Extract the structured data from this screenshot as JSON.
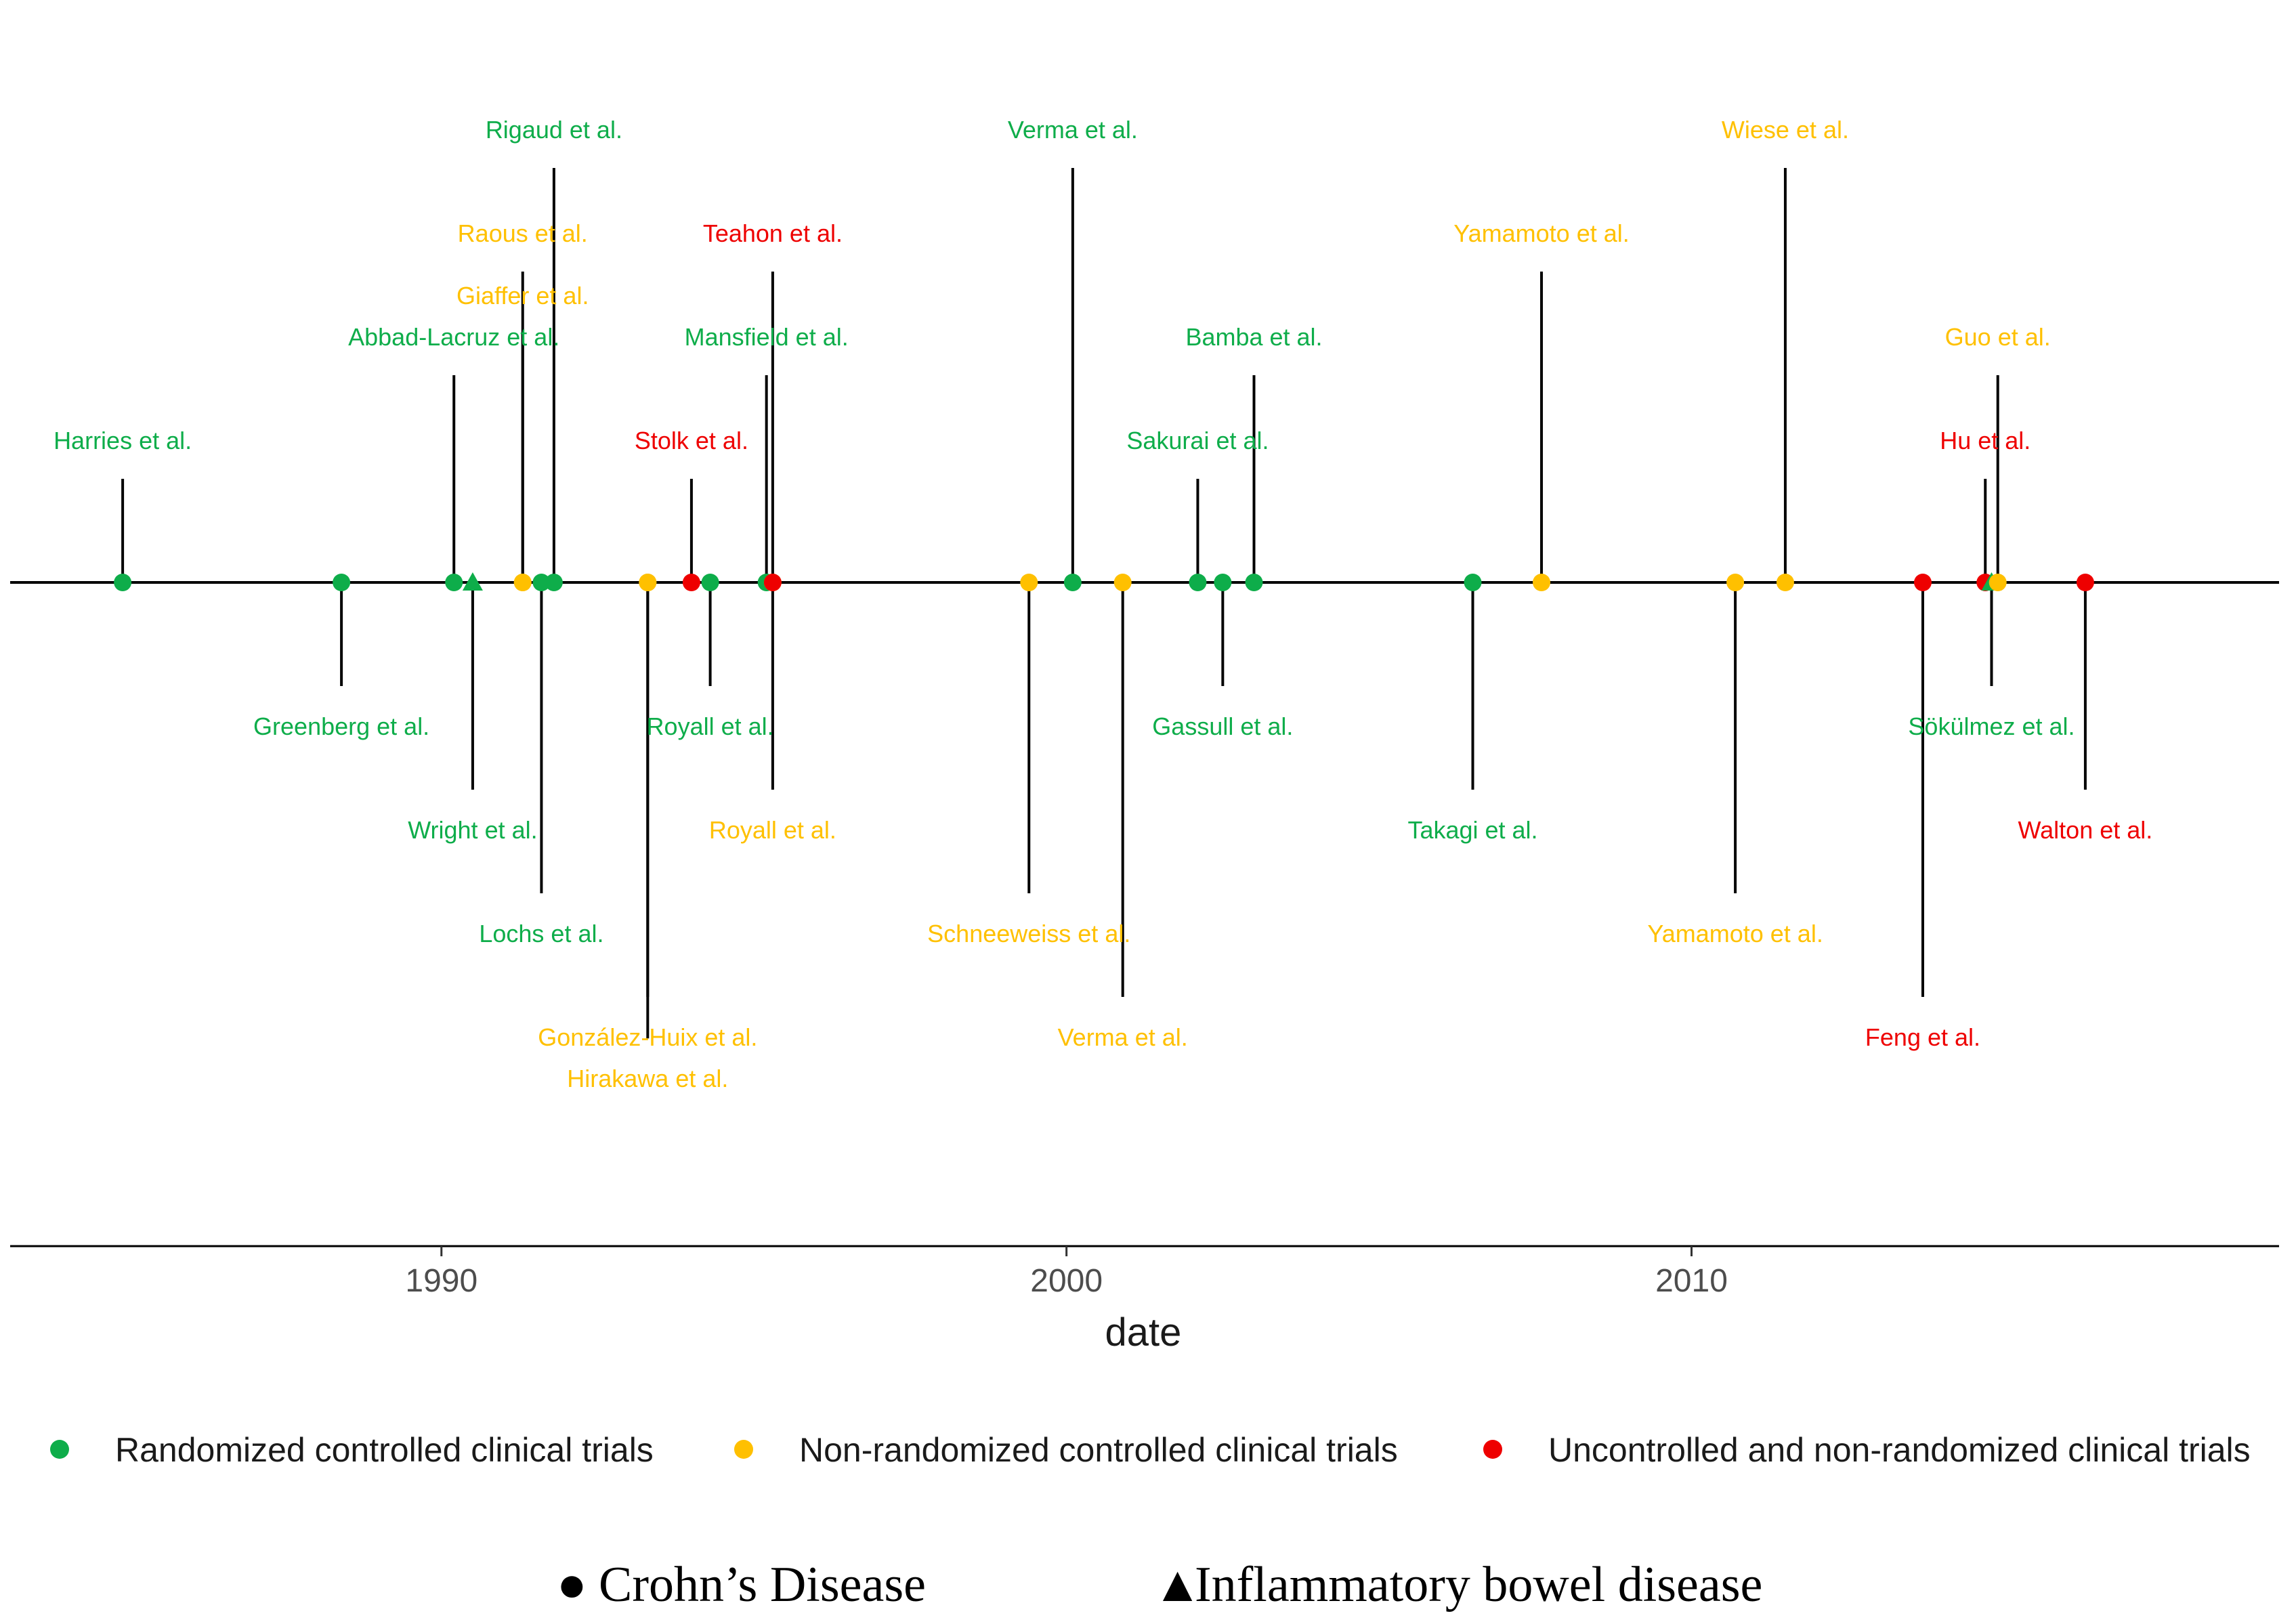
{
  "chart_data": {
    "type": "timeline",
    "xlabel": "date",
    "xlim": [
      1983.1,
      2019.4
    ],
    "x_ticks": [
      1990,
      2000,
      2010
    ],
    "x_tick_labels": [
      "1990",
      "2000",
      "2010"
    ],
    "colors": {
      "rct": "#0ead4a",
      "nrct": "#ffc000",
      "unc": "#ee0000",
      "line": "#000000"
    },
    "legend": {
      "placement": "bottom",
      "items": [
        {
          "category": "rct",
          "label": "Randomized controlled clinical trials"
        },
        {
          "category": "nrct",
          "label": "Non-randomized controlled clinical trials"
        },
        {
          "category": "unc",
          "label": "Uncontrolled and non-randomized clinical trials"
        }
      ]
    },
    "shape_legend": [
      {
        "symbol": "●",
        "label": "Crohn’s Disease",
        "shape": "circle"
      },
      {
        "symbol": "▲",
        "label": "Inflammatory bowel disease",
        "shape": "triangle"
      }
    ],
    "events": [
      {
        "label": "Harries et al.",
        "year": 1984.9,
        "category": "rct",
        "shape": "circle",
        "side": "up",
        "level": 1
      },
      {
        "label": "Greenberg et al.",
        "year": 1988.4,
        "category": "rct",
        "shape": "circle",
        "side": "down",
        "level": 1
      },
      {
        "label": "Abbad-Lacruz et al.",
        "year": 1990.2,
        "category": "rct",
        "shape": "circle",
        "side": "up",
        "level": 2
      },
      {
        "label": "Wright et al.",
        "year": 1990.5,
        "category": "rct",
        "shape": "triangle",
        "side": "down",
        "level": 2
      },
      {
        "label": "Giaffer et al.",
        "year": 1991.3,
        "category": "nrct",
        "shape": "circle",
        "side": "up",
        "level": 2.4
      },
      {
        "label": "Raous et al.",
        "year": 1991.3,
        "category": "nrct",
        "shape": "circle",
        "side": "up",
        "level": 3
      },
      {
        "label": "Lochs et al.",
        "year": 1991.6,
        "category": "rct",
        "shape": "circle",
        "side": "down",
        "level": 3
      },
      {
        "label": "Rigaud et al.",
        "year": 1991.8,
        "category": "rct",
        "shape": "circle",
        "side": "up",
        "level": 4
      },
      {
        "label": "González-Huix  et al.",
        "year": 1993.3,
        "category": "nrct",
        "shape": "circle",
        "side": "down",
        "level": 4
      },
      {
        "label": "Hirakawa et al.",
        "year": 1993.3,
        "category": "nrct",
        "shape": "circle",
        "side": "down",
        "level": 4.4
      },
      {
        "label": "Stolk et al.",
        "year": 1994.0,
        "category": "unc",
        "shape": "circle",
        "side": "up",
        "level": 1
      },
      {
        "label": "Royall et al.",
        "year": 1994.3,
        "category": "rct",
        "shape": "circle",
        "side": "down",
        "level": 1
      },
      {
        "label": "Mansfield et al.",
        "year": 1995.2,
        "category": "rct",
        "shape": "circle",
        "side": "up",
        "level": 2
      },
      {
        "label": "Royall et al.",
        "year": 1995.3,
        "category": "nrct",
        "shape": "circle",
        "side": "down",
        "level": 2
      },
      {
        "label": "Teahon et al.",
        "year": 1995.3,
        "category": "unc",
        "shape": "circle",
        "side": "up",
        "level": 3
      },
      {
        "label": "Schneeweiss et al.",
        "year": 1999.4,
        "category": "nrct",
        "shape": "circle",
        "side": "down",
        "level": 3
      },
      {
        "label": "Verma et al.",
        "year": 2000.1,
        "category": "rct",
        "shape": "circle",
        "side": "up",
        "level": 4
      },
      {
        "label": "Verma et al.",
        "year": 2000.9,
        "category": "nrct",
        "shape": "circle",
        "side": "down",
        "level": 4
      },
      {
        "label": "Sakurai et al.",
        "year": 2002.1,
        "category": "rct",
        "shape": "circle",
        "side": "up",
        "level": 1
      },
      {
        "label": "Gassull et al.",
        "year": 2002.5,
        "category": "rct",
        "shape": "circle",
        "side": "down",
        "level": 1
      },
      {
        "label": "Bamba  et al.",
        "year": 2003.0,
        "category": "rct",
        "shape": "circle",
        "side": "up",
        "level": 2
      },
      {
        "label": "Takagi et al.",
        "year": 2006.5,
        "category": "rct",
        "shape": "circle",
        "side": "down",
        "level": 2
      },
      {
        "label": "Yamamoto et al.",
        "year": 2007.6,
        "category": "nrct",
        "shape": "circle",
        "side": "up",
        "level": 3
      },
      {
        "label": "Yamamoto et al.",
        "year": 2010.7,
        "category": "nrct",
        "shape": "circle",
        "side": "down",
        "level": 3
      },
      {
        "label": "Wiese et al.",
        "year": 2011.5,
        "category": "nrct",
        "shape": "circle",
        "side": "up",
        "level": 4
      },
      {
        "label": "Feng et al.",
        "year": 2013.7,
        "category": "unc",
        "shape": "circle",
        "side": "down",
        "level": 4
      },
      {
        "label": "Hu et al.",
        "year": 2014.7,
        "category": "unc",
        "shape": "circle",
        "side": "up",
        "level": 1
      },
      {
        "label": "Sökülmez et al.",
        "year": 2014.8,
        "category": "rct",
        "shape": "triangle",
        "side": "down",
        "level": 1
      },
      {
        "label": "Guo et al.",
        "year": 2014.9,
        "category": "nrct",
        "shape": "circle",
        "side": "up",
        "level": 2
      },
      {
        "label": "Walton et al.",
        "year": 2016.3,
        "category": "unc",
        "shape": "circle",
        "side": "down",
        "level": 2
      }
    ]
  }
}
